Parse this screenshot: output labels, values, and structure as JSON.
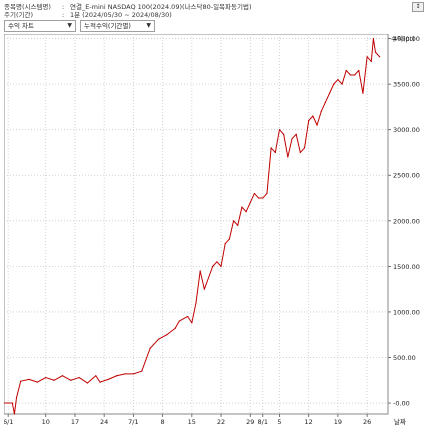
{
  "header": {
    "row1_label": "종목명(시스템명)",
    "row1_value": "연결_E-mini NASDAQ 100(2024.09)(나스닥80-일목파동기법)",
    "row2_label": "주기(기간)",
    "row2_value": "1분 (2024/05/30 ~ 2024/08/30)",
    "colon": ":",
    "button_label": "↕"
  },
  "toolbar": {
    "chart_select": "수익 차트",
    "mode_select": "누적수익(기간별)"
  },
  "chart_data": {
    "type": "line",
    "title": "",
    "y_unit_label": "수익(pt)",
    "x_axis_label": "날짜",
    "ylim": [
      -120,
      4050
    ],
    "y_ticks": [
      -0.0,
      500.0,
      1000.0,
      1500.0,
      2000.0,
      2500.0,
      3000.0,
      3500.0,
      4000.0
    ],
    "y_tick_labels": [
      "-0.00",
      "500.00",
      "1000.00",
      "1500.00",
      "2000.00",
      "2500.00",
      "3000.00",
      "3500.00",
      "4000.00"
    ],
    "x_tick_labels": [
      "6/1",
      "10",
      "17",
      "24",
      "7/1",
      "8",
      "15",
      "22",
      "29",
      "8/1",
      "5",
      "12",
      "19",
      "26"
    ],
    "x_tick_index": [
      1,
      10,
      17,
      24,
      31,
      38,
      45,
      52,
      59,
      62,
      66,
      73,
      80,
      87
    ],
    "x_range_index": [
      0,
      92
    ],
    "grid": true,
    "line_color": "#c00000",
    "series": [
      {
        "x": [
          0,
          2,
          2.5,
          3,
          4,
          6,
          8,
          10,
          12,
          14,
          16,
          18,
          20,
          22,
          23,
          25,
          27,
          29,
          31,
          33,
          35,
          37,
          39,
          41,
          42,
          44,
          45,
          46,
          47,
          48,
          50,
          51,
          52,
          53,
          54,
          55,
          56,
          57,
          58,
          59,
          60,
          61,
          62,
          63,
          64,
          65,
          66,
          67,
          68,
          69,
          70,
          71,
          72,
          73,
          74,
          75,
          76,
          77,
          78,
          79,
          80,
          81,
          82,
          83,
          84,
          85,
          86,
          87,
          88,
          88.5,
          89,
          90
        ],
        "y": [
          -0.0,
          -0.0,
          -120,
          60,
          240,
          260,
          230,
          280,
          250,
          300,
          250,
          280,
          220,
          300,
          230,
          260,
          300,
          320,
          320,
          350,
          600,
          700,
          750,
          820,
          900,
          950,
          880,
          1100,
          1450,
          1250,
          1500,
          1550,
          1500,
          1750,
          1800,
          2000,
          1950,
          2150,
          2100,
          2200,
          2300,
          2250,
          2250,
          2300,
          2800,
          2750,
          3000,
          2950,
          2700,
          2900,
          2950,
          2750,
          2800,
          3100,
          3150,
          3050,
          3200,
          3300,
          3400,
          3500,
          3550,
          3500,
          3650,
          3600,
          3600,
          3650,
          3400,
          3800,
          3750,
          4000,
          3850,
          3800
        ]
      }
    ]
  }
}
